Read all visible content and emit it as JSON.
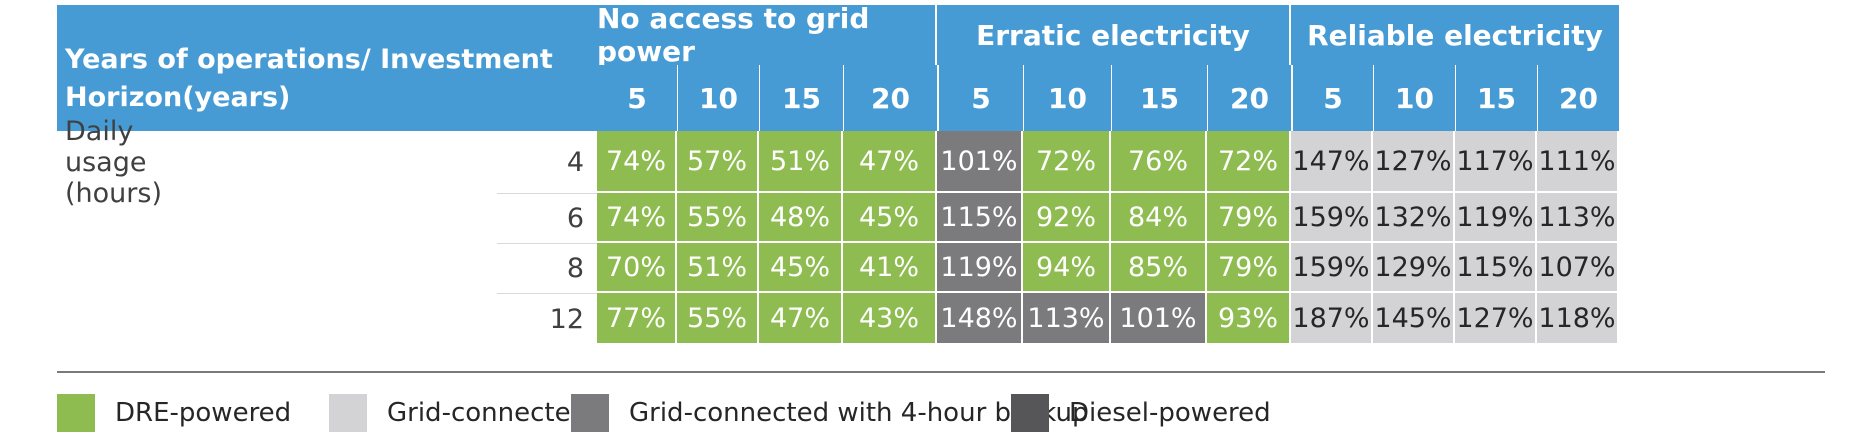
{
  "chart_data": {
    "type": "table",
    "row_header_label": "Years of operations/ Investment Horizon(years)",
    "row_group_label": "Daily usage (hours)",
    "column_groups": [
      {
        "name": "No access to grid power",
        "years": [
          "5",
          "10",
          "15",
          "20"
        ]
      },
      {
        "name": "Erratic electricity",
        "years": [
          "5",
          "10",
          "15",
          "20"
        ]
      },
      {
        "name": "Reliable electricity",
        "years": [
          "5",
          "10",
          "15",
          "20"
        ]
      }
    ],
    "rows": [
      {
        "hours": "4",
        "values": [
          "74%",
          "57%",
          "51%",
          "47%",
          "101%",
          "72%",
          "76%",
          "72%",
          "147%",
          "127%",
          "117%",
          "111%"
        ],
        "categories": [
          "dre",
          "dre",
          "dre",
          "dre",
          "backup",
          "dre",
          "dre",
          "dre",
          "grid",
          "grid",
          "grid",
          "grid"
        ]
      },
      {
        "hours": "6",
        "values": [
          "74%",
          "55%",
          "48%",
          "45%",
          "115%",
          "92%",
          "84%",
          "79%",
          "159%",
          "132%",
          "119%",
          "113%"
        ],
        "categories": [
          "dre",
          "dre",
          "dre",
          "dre",
          "backup",
          "dre",
          "dre",
          "dre",
          "grid",
          "grid",
          "grid",
          "grid"
        ]
      },
      {
        "hours": "8",
        "values": [
          "70%",
          "51%",
          "45%",
          "41%",
          "119%",
          "94%",
          "85%",
          "79%",
          "159%",
          "129%",
          "115%",
          "107%"
        ],
        "categories": [
          "dre",
          "dre",
          "dre",
          "dre",
          "backup",
          "dre",
          "dre",
          "dre",
          "grid",
          "grid",
          "grid",
          "grid"
        ]
      },
      {
        "hours": "12",
        "values": [
          "77%",
          "55%",
          "47%",
          "43%",
          "148%",
          "113%",
          "101%",
          "93%",
          "187%",
          "145%",
          "127%",
          "118%"
        ],
        "categories": [
          "dre",
          "dre",
          "dre",
          "dre",
          "backup",
          "backup",
          "backup",
          "dre",
          "grid",
          "grid",
          "grid",
          "grid"
        ]
      }
    ],
    "legend": [
      {
        "key": "dre",
        "label": "DRE-powered",
        "color": "#8fbc50"
      },
      {
        "key": "grid",
        "label": "Grid-connected",
        "color": "#d3d3d5"
      },
      {
        "key": "backup",
        "label": "Grid-connected with 4-hour backup",
        "color": "#7b7b7e"
      },
      {
        "key": "diesel",
        "label": "Diesel-powered",
        "color": "#565658"
      }
    ],
    "legend_placement": "bottom",
    "header_color": "#479bd4"
  }
}
